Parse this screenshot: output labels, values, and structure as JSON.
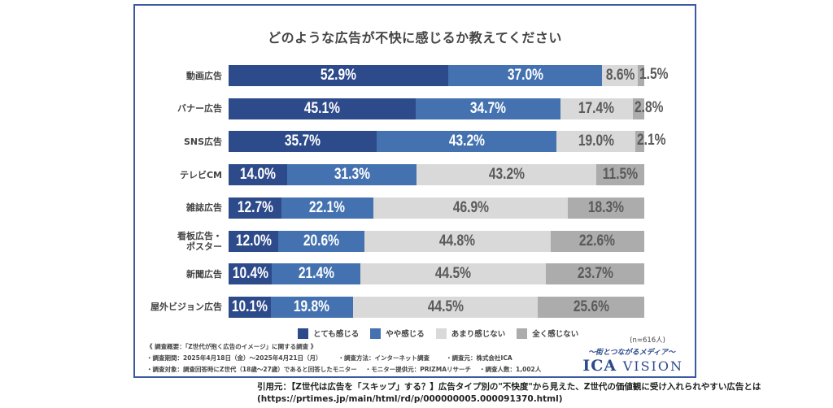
{
  "chart_data": {
    "type": "bar",
    "orientation": "horizontal",
    "stacked": true,
    "title": "どのような広告が不快に感じるか教えてください",
    "xlabel": "",
    "ylabel": "",
    "xlim": [
      0,
      100
    ],
    "unit": "%",
    "categories": [
      "動画広告",
      "バナー広告",
      "SNS広告",
      "テレビCM",
      "雑誌広告",
      "看板広告・ポスター",
      "新聞広告",
      "屋外ビジョン広告"
    ],
    "category_display": [
      [
        "動画広告"
      ],
      [
        "バナー広告"
      ],
      [
        "SNS広告"
      ],
      [
        "テレビCM"
      ],
      [
        "雑誌広告"
      ],
      [
        "看板広告・",
        "ポスター"
      ],
      [
        "新聞広告"
      ],
      [
        "屋外ビジョン広告"
      ]
    ],
    "series": [
      {
        "name": "とても感じる",
        "color": "#2d4a8a",
        "values": [
          52.9,
          45.1,
          35.7,
          14.0,
          12.7,
          12.0,
          10.4,
          10.1
        ]
      },
      {
        "name": "やや感じる",
        "color": "#4472b0",
        "values": [
          37.0,
          34.7,
          43.2,
          31.3,
          22.1,
          20.6,
          21.4,
          19.8
        ]
      },
      {
        "name": "あまり感じない",
        "color": "#d9d9d9",
        "values": [
          8.6,
          17.4,
          19.0,
          43.2,
          46.9,
          44.8,
          44.5,
          44.5
        ]
      },
      {
        "name": "全く感じない",
        "color": "#acacac",
        "values": [
          1.5,
          2.8,
          2.1,
          11.5,
          18.3,
          22.6,
          23.7,
          25.6
        ]
      }
    ],
    "labels": [
      [
        "52.9%",
        "37.0%",
        "8.6%",
        "1.5%"
      ],
      [
        "45.1%",
        "34.7%",
        "17.4%",
        "2.8%"
      ],
      [
        "35.7%",
        "43.2%",
        "19.0%",
        "2.1%"
      ],
      [
        "14.0%",
        "31.3%",
        "43.2%",
        "11.5%"
      ],
      [
        "12.7%",
        "22.1%",
        "46.9%",
        "18.3%"
      ],
      [
        "12.0%",
        "20.6%",
        "44.8%",
        "22.6%"
      ],
      [
        "10.4%",
        "21.4%",
        "44.5%",
        "23.7%"
      ],
      [
        "10.1%",
        "19.8%",
        "44.5%",
        "25.6%"
      ]
    ],
    "legend_position": "bottom",
    "grid": false
  },
  "legend": [
    {
      "label": "とても感じる",
      "color": "#2d4a8a"
    },
    {
      "label": "やや感じる",
      "color": "#4472b0"
    },
    {
      "label": "あまり感じない",
      "color": "#d9d9d9"
    },
    {
      "label": "全く感じない",
      "color": "#acacac"
    }
  ],
  "sample_note": "(n=616人)",
  "survey": {
    "heading": "《 調査概要：「Z世代が抱く広告のイメージ」に関する調査 》",
    "period": "・調査期間：2025年4月18日（金）～2025年4月21日（月）",
    "method": "・調査方法：インターネット調査",
    "organizer": "・調査元：株式会社ICA",
    "target": "・調査対象：調査回答時にZ世代（18歳～27歳）であると回答したモニター",
    "provider": "・モニター提供元：PRIZMAリサーチ",
    "respondents": "・調査人数：1,002人"
  },
  "brand": {
    "tagline": "～街とつながるメディア～",
    "name_bold": "ICA",
    "name_rest": "VISION"
  },
  "citation": {
    "line1": "引用元：【Z世代は広告を「スキップ」する？】広告タイプ別の\"不快度\"から見えた、Z世代の価値観に受け入れられやすい広告とは",
    "line2": "(https://prtimes.jp/main/html/rd/p/000000005.000091370.html)"
  }
}
